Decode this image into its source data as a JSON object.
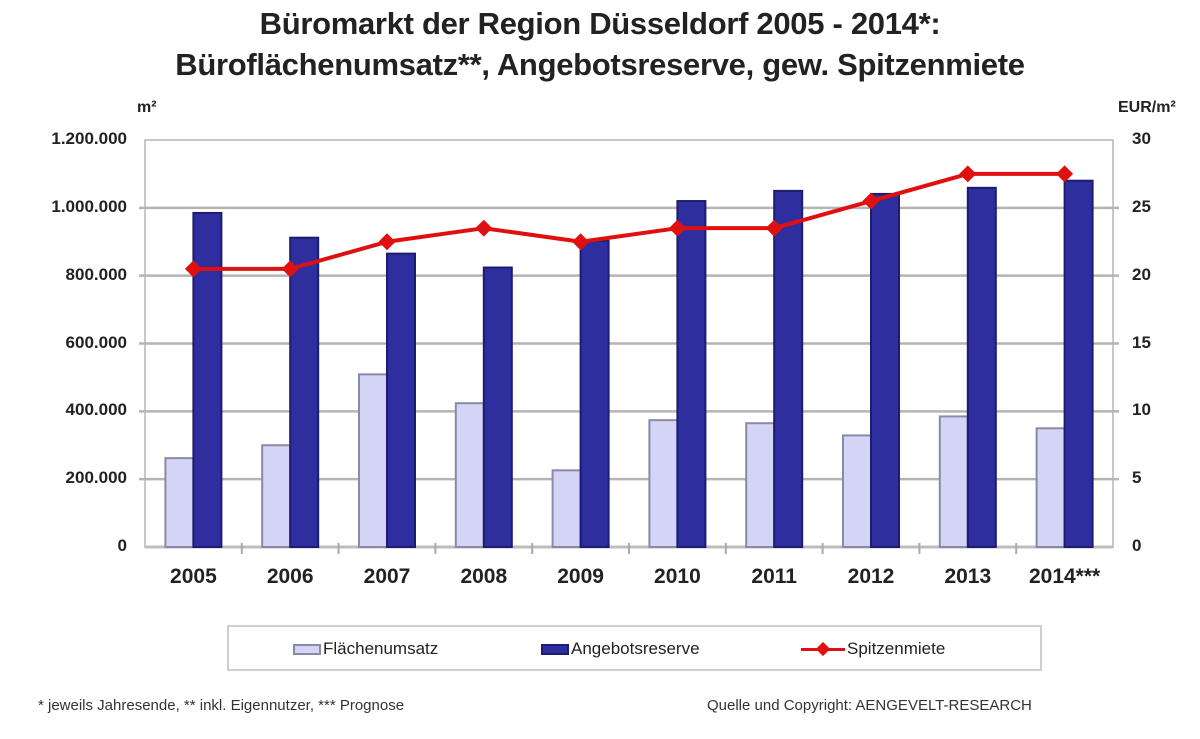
{
  "title": {
    "line1": "Büromarkt der Region Düsseldorf 2005 - 2014*:",
    "line2": "Büroflächenumsatz**, Angebotsreserve, gew. Spitzenmiete"
  },
  "axes": {
    "left_unit": "m²",
    "right_unit": "EUR/m²",
    "left_ticks": [
      "1.200.000",
      "1.000.000",
      "800.000",
      "600.000",
      "400.000",
      "200.000",
      "0"
    ],
    "right_ticks": [
      "30",
      "25",
      "20",
      "15",
      "10",
      "5",
      "0"
    ]
  },
  "legend": {
    "items": [
      "Flächenumsatz",
      "Angebotsreserve",
      "Spitzenmiete"
    ]
  },
  "footer": {
    "notes": "* jeweils Jahresende, ** inkl. Eigennutzer, *** Prognose",
    "source": "Quelle und Copyright: AENGEVELT-RESEARCH"
  },
  "colors": {
    "flaechenumsatz_fill": "#d4d4f7",
    "flaechenumsatz_border": "#8a8aa6",
    "angebotsreserve_fill": "#2e2e9e",
    "angebotsreserve_border": "#1c1c70",
    "spitzenmiete_line": "#e01010",
    "gridline": "#b4b4b4"
  },
  "chart_data": {
    "type": "bar",
    "title": "Büromarkt der Region Düsseldorf 2005 - 2014*: Büroflächenumsatz**, Angebotsreserve, gew. Spitzenmiete",
    "categories": [
      "2005",
      "2006",
      "2007",
      "2008",
      "2009",
      "2010",
      "2011",
      "2012",
      "2013",
      "2014***"
    ],
    "series": [
      {
        "name": "Flächenumsatz",
        "type": "bar",
        "axis": "left",
        "values": [
          262000,
          300000,
          509000,
          424000,
          226000,
          374000,
          365000,
          329000,
          385000,
          350000
        ]
      },
      {
        "name": "Angebotsreserve",
        "type": "bar",
        "axis": "left",
        "values": [
          985000,
          912000,
          865000,
          824000,
          903000,
          1020000,
          1050000,
          1041000,
          1059000,
          1080000
        ]
      },
      {
        "name": "Spitzenmiete",
        "type": "line",
        "axis": "right",
        "values": [
          20.5,
          20.5,
          22.5,
          23.5,
          22.5,
          23.5,
          23.5,
          25.5,
          27.5,
          27.5
        ]
      }
    ],
    "xlabel": "",
    "ylabel": "m²",
    "ylabel_right": "EUR/m²",
    "ylim": [
      0,
      1200000
    ],
    "ylim_right": [
      0,
      30
    ],
    "grid": true,
    "legend_position": "bottom"
  }
}
